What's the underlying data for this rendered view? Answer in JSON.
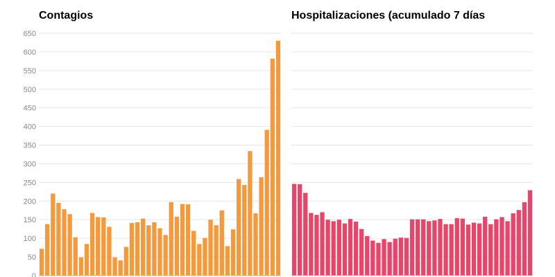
{
  "chart_data": [
    {
      "type": "bar",
      "title": "Contagios",
      "color": "#f59a3c",
      "ylim": [
        0,
        650
      ],
      "yticks": [
        0,
        50,
        100,
        150,
        200,
        250,
        300,
        350,
        400,
        450,
        500,
        550,
        600,
        650
      ],
      "grid": true,
      "values": [
        72,
        138,
        220,
        195,
        178,
        165,
        103,
        49,
        85,
        168,
        157,
        156,
        131,
        49,
        41,
        77,
        141,
        143,
        153,
        135,
        143,
        127,
        109,
        197,
        158,
        192,
        191,
        120,
        85,
        101,
        150,
        135,
        175,
        79,
        124,
        259,
        243,
        334,
        167,
        264,
        391,
        582,
        630
      ]
    },
    {
      "type": "bar",
      "title": "Hospitalizaciones (acumulado 7 días",
      "color": "#e8456b",
      "ylim": [
        0,
        650
      ],
      "grid": true,
      "values": [
        246,
        245,
        222,
        168,
        163,
        170,
        150,
        146,
        150,
        140,
        152,
        145,
        125,
        106,
        94,
        88,
        98,
        90,
        99,
        102,
        101,
        151,
        151,
        151,
        146,
        148,
        152,
        138,
        138,
        154,
        153,
        137,
        142,
        140,
        158,
        138,
        151,
        157,
        146,
        167,
        176,
        197,
        229
      ]
    }
  ]
}
